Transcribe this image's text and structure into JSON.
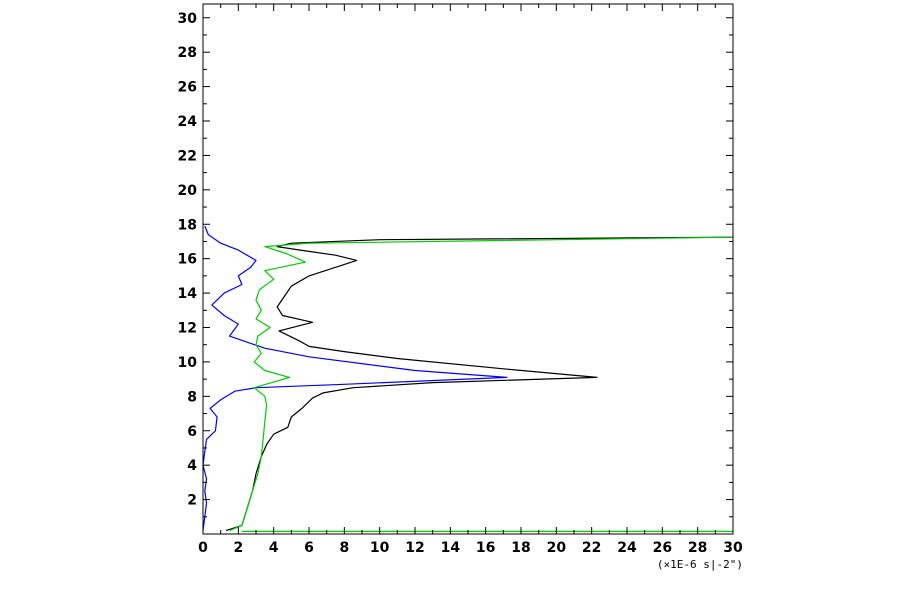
{
  "chart_data": {
    "type": "line",
    "title": "",
    "xlabel": "",
    "ylabel": "",
    "x_unit_label": "(×1E-6 s|-2\")",
    "xlim": [
      0,
      30
    ],
    "ylim": [
      0,
      30.8
    ],
    "x_ticks": [
      0,
      2,
      4,
      6,
      8,
      10,
      12,
      14,
      16,
      18,
      20,
      22,
      24,
      26,
      28,
      30
    ],
    "y_ticks": [
      2,
      4,
      6,
      8,
      10,
      12,
      14,
      16,
      18,
      20,
      22,
      24,
      26,
      28,
      30
    ],
    "grid": false,
    "legend": "none",
    "series": [
      {
        "color": "#000000",
        "points": [
          [
            1.3,
            0.2
          ],
          [
            2.2,
            0.5
          ],
          [
            2.5,
            1.5
          ],
          [
            2.8,
            2.5
          ],
          [
            3.0,
            3.5
          ],
          [
            3.3,
            4.5
          ],
          [
            3.6,
            5.2
          ],
          [
            4.0,
            5.8
          ],
          [
            4.8,
            6.2
          ],
          [
            5.0,
            6.8
          ],
          [
            5.6,
            7.3
          ],
          [
            6.2,
            7.9
          ],
          [
            6.8,
            8.2
          ],
          [
            8.5,
            8.5
          ],
          [
            13,
            8.8
          ],
          [
            22.3,
            9.1
          ],
          [
            17,
            9.6
          ],
          [
            11,
            10.2
          ],
          [
            8.0,
            10.6
          ],
          [
            6.0,
            10.9
          ],
          [
            5.5,
            11.2
          ],
          [
            4.3,
            11.8
          ],
          [
            6.2,
            12.3
          ],
          [
            4.5,
            12.7
          ],
          [
            4.2,
            13.2
          ],
          [
            4.6,
            13.8
          ],
          [
            5.0,
            14.4
          ],
          [
            6.0,
            15.0
          ],
          [
            8.7,
            15.9
          ],
          [
            7.5,
            16.2
          ],
          [
            5.5,
            16.5
          ],
          [
            4.2,
            16.7
          ],
          [
            5.0,
            16.9
          ],
          [
            10,
            17.1
          ],
          [
            30,
            17.25
          ]
        ]
      },
      {
        "color": "#0000ff",
        "points": [
          [
            0.0,
            0.2
          ],
          [
            0.1,
            1.0
          ],
          [
            0.2,
            1.8
          ],
          [
            0.1,
            2.5
          ],
          [
            0.2,
            3.2
          ],
          [
            0.0,
            4.0
          ],
          [
            0.1,
            4.8
          ],
          [
            0.2,
            5.5
          ],
          [
            0.7,
            6.0
          ],
          [
            0.8,
            6.8
          ],
          [
            0.4,
            7.3
          ],
          [
            1.0,
            7.8
          ],
          [
            1.8,
            8.3
          ],
          [
            3.0,
            8.5
          ],
          [
            8.0,
            8.7
          ],
          [
            17.2,
            9.1
          ],
          [
            12,
            9.5
          ],
          [
            6.0,
            10.3
          ],
          [
            3.5,
            10.8
          ],
          [
            1.5,
            11.5
          ],
          [
            2.0,
            12.2
          ],
          [
            1.2,
            12.7
          ],
          [
            0.5,
            13.3
          ],
          [
            1.2,
            14.0
          ],
          [
            2.2,
            14.5
          ],
          [
            2.0,
            15.0
          ],
          [
            2.7,
            15.5
          ],
          [
            3.0,
            15.9
          ],
          [
            2.0,
            16.5
          ],
          [
            1.0,
            16.9
          ],
          [
            0.3,
            17.4
          ],
          [
            0.1,
            17.9
          ]
        ]
      },
      {
        "color": "#00cc00",
        "points": [
          [
            1.5,
            0.2
          ],
          [
            2.2,
            0.5
          ],
          [
            2.5,
            1.5
          ],
          [
            2.8,
            2.5
          ],
          [
            3.1,
            3.5
          ],
          [
            3.3,
            4.5
          ],
          [
            3.4,
            5.5
          ],
          [
            3.5,
            6.5
          ],
          [
            3.6,
            7.5
          ],
          [
            3.5,
            8.0
          ],
          [
            2.9,
            8.5
          ],
          [
            4.9,
            9.1
          ],
          [
            3.5,
            9.5
          ],
          [
            2.9,
            10.0
          ],
          [
            3.3,
            10.5
          ],
          [
            3.0,
            11.0
          ],
          [
            3.1,
            11.5
          ],
          [
            3.8,
            12.0
          ],
          [
            3.0,
            12.5
          ],
          [
            3.3,
            13.0
          ],
          [
            3.0,
            13.6
          ],
          [
            3.2,
            14.2
          ],
          [
            4.0,
            14.8
          ],
          [
            3.5,
            15.3
          ],
          [
            5.8,
            15.8
          ],
          [
            4.7,
            16.3
          ],
          [
            3.5,
            16.7
          ],
          [
            6.0,
            16.9
          ],
          [
            30,
            17.25
          ]
        ]
      },
      {
        "color": "#00cc00",
        "points": [
          [
            2.2,
            0.15
          ],
          [
            30,
            0.15
          ]
        ]
      }
    ]
  }
}
